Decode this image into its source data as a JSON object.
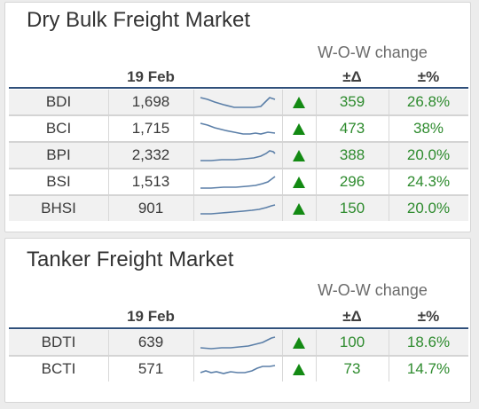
{
  "dry": {
    "title": "Dry Bulk Freight Market",
    "wow": "W-O-W change",
    "date": "19 Feb",
    "abs_header": "±Δ",
    "pct_header": "±%",
    "rows": [
      {
        "name": "BDI",
        "value": "1,698",
        "abs": "359",
        "pct": "26.8%"
      },
      {
        "name": "BCI",
        "value": "1,715",
        "abs": "473",
        "pct": "38%"
      },
      {
        "name": "BPI",
        "value": "2,332",
        "abs": "388",
        "pct": "20.0%"
      },
      {
        "name": "BSI",
        "value": "1,513",
        "abs": "296",
        "pct": "24.3%"
      },
      {
        "name": "BHSI",
        "value": "901",
        "abs": "150",
        "pct": "20.0%"
      }
    ]
  },
  "tanker": {
    "title": "Tanker Freight Market",
    "wow": "W-O-W change",
    "date": "19 Feb",
    "abs_header": "±Δ",
    "pct_header": "±%",
    "rows": [
      {
        "name": "BDTI",
        "value": "639",
        "abs": "100",
        "pct": "18.6%"
      },
      {
        "name": "BCTI",
        "value": "571",
        "abs": "73",
        "pct": "14.7%"
      }
    ]
  },
  "colors": {
    "accent_rule": "#2f4f7a",
    "positive": "#2e8b2e",
    "spark": "#5b7fa8",
    "up_arrow": "#138a13"
  },
  "icons": {
    "trend": "sparkline-icon",
    "direction": "up-triangle-icon"
  }
}
